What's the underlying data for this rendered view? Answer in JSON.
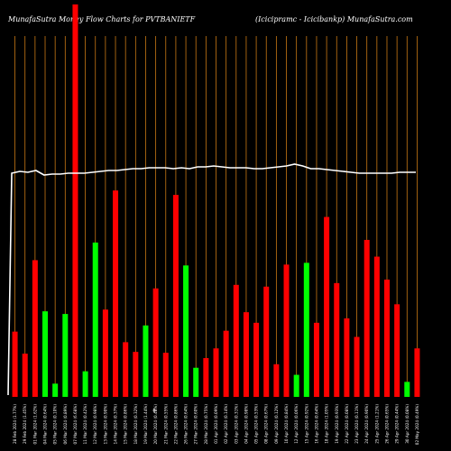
{
  "header": {
    "left": "MunafaSutra  Money Flow  Charts for PVTBANIETF",
    "right": "(Icicipramc - Icicibankp) MunafaSutra.com"
  },
  "colors": {
    "up": "#00ff00",
    "down": "#ff0000",
    "grid": "#c87814",
    "line": "#ffffff",
    "background": "#000000"
  },
  "chart_data": {
    "type": "bar",
    "data_label": "6",
    "categories": [
      "28 Feb 2024 (1.77%)",
      "29 Feb 2024 (1.45%)",
      "01 Mar 2024 (1.62%)",
      "04 Mar 2024 (0.64%)",
      "05 Mar 2024 (0.10%)",
      "06 Mar 2024 (0.89%)",
      "07 Mar 2024 (6.68%)",
      "11 Mar 2024 (0.42%)",
      "12 Mar 2024 (0.98%)",
      "13 Mar 2024 (0.90%)",
      "14 Mar 2024 (0.37%)",
      "15 Mar 2024 (0.86%)",
      "18 Mar 2024 (0.32%)",
      "19 Mar 2024 (1.44%)",
      "20 Mar 2024 (0.48%)",
      "21 Mar 2024 (0.55%)",
      "22 Mar 2024 (0.86%)",
      "26 Mar 2024 (0.64%)",
      "27 Mar 2024 (0.60%)",
      "28 Mar 2024 (0.75%)",
      "01 Apr 2024 (0.09%)",
      "02 Apr 2024 (0.14%)",
      "03 Apr 2024 (0.31%)",
      "04 Apr 2024 (0.98%)",
      "05 Apr 2024 (0.53%)",
      "08 Apr 2024 (0.67%)",
      "09 Apr 2024 (0.12%)",
      "10 Apr 2024 (0.84%)",
      "12 Apr 2024 (0.06%)",
      "15 Apr 2024 (0.92%)",
      "16 Apr 2024 (0.64%)",
      "18 Apr 2024 (1.05%)",
      "19 Apr 2024 (0.93%)",
      "22 Apr 2024 (0.08%)",
      "23 Apr 2024 (0.11%)",
      "24 Apr 2024 (0.90%)",
      "25 Apr 2024 (1.21%)",
      "26 Apr 2024 (0.65%)",
      "29 Apr 2024 (0.44%)",
      "30 Apr 2024 (0.08%)",
      "02 May 2024 (0.49%)"
    ],
    "series": [
      {
        "values": [
          74,
          49,
          155,
          97,
          15,
          94,
          445,
          29,
          175,
          99,
          234,
          62,
          51,
          81,
          123,
          50,
          229,
          149,
          33,
          44,
          55,
          75,
          127,
          96,
          84,
          125,
          37,
          150,
          25,
          152,
          84,
          204,
          129,
          89,
          68,
          178,
          159,
          133,
          105,
          17,
          55
        ],
        "colors": [
          "red",
          "red",
          "red",
          "green",
          "green",
          "green",
          "red",
          "green",
          "green",
          "red",
          "red",
          "red",
          "red",
          "green",
          "red",
          "red",
          "red",
          "green",
          "green",
          "red",
          "red",
          "red",
          "red",
          "red",
          "red",
          "red",
          "red",
          "red",
          "green",
          "green",
          "red",
          "red",
          "red",
          "red",
          "red",
          "red",
          "red",
          "red",
          "red",
          "green",
          "red"
        ]
      }
    ],
    "line": [
      248,
      250,
      249,
      251,
      246,
      247,
      247,
      248,
      248,
      248,
      249,
      250,
      251,
      251,
      252,
      253,
      253,
      254,
      254,
      254,
      253,
      254,
      253,
      255,
      255,
      256,
      255,
      254,
      254,
      254,
      253,
      253,
      254,
      255,
      256,
      258,
      256,
      253,
      253,
      252,
      251,
      250,
      249,
      248,
      248,
      248,
      248,
      248,
      249,
      249,
      249
    ],
    "ylim": [
      0,
      450
    ],
    "xlabel": "",
    "ylabel": "",
    "grid": true
  }
}
